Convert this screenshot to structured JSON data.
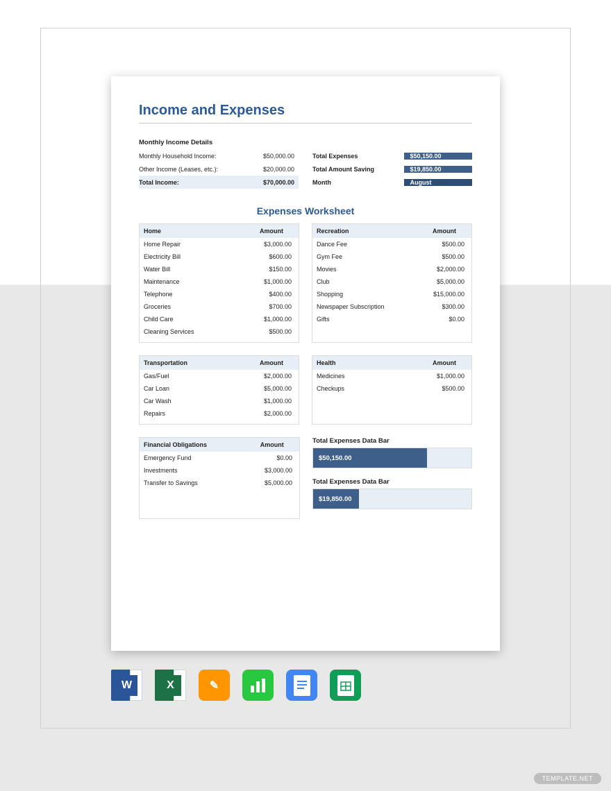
{
  "title": "Income and Expenses",
  "income": {
    "section_label": "Monthly Income Details",
    "rows": [
      {
        "label": "Monthly Household Income:",
        "value": "$50,000.00"
      },
      {
        "label": "Other Income (Leases, etc.):",
        "value": "$20,000.00"
      }
    ],
    "total_label": "Total Income:",
    "total_value": "$70,000.00"
  },
  "summary": {
    "rows": [
      {
        "label": "Total Expenses",
        "value": "$50,150.00",
        "style": "blue"
      },
      {
        "label": "Total Amount Saving",
        "value": "$19,850.00",
        "style": "blue"
      },
      {
        "label": "Month",
        "value": "August",
        "style": "dark"
      }
    ]
  },
  "worksheet_title": "Expenses Worksheet",
  "colors": {
    "accent": "#2a5a9a",
    "header_bg": "#e8eef5",
    "bar_fill": "#3d5f8a",
    "bar_dark": "#2e4d75",
    "border": "#dcdcdc"
  },
  "tables": {
    "row1": [
      {
        "name": "Home",
        "amount_label": "Amount",
        "rows": [
          {
            "label": "Home Repair",
            "value": "$3,000.00"
          },
          {
            "label": "Electricity Bill",
            "value": "$600.00"
          },
          {
            "label": "Water Bill",
            "value": "$150.00"
          },
          {
            "label": "Maintenance",
            "value": "$1,000.00"
          },
          {
            "label": "Telephone",
            "value": "$400.00"
          },
          {
            "label": "Groceries",
            "value": "$700.00"
          },
          {
            "label": "Child Care",
            "value": "$1,000.00"
          },
          {
            "label": "Cleaning Services",
            "value": "$500.00"
          }
        ]
      },
      {
        "name": "Recreation",
        "amount_label": "Amount",
        "rows": [
          {
            "label": "Dance Fee",
            "value": "$500.00"
          },
          {
            "label": "Gym Fee",
            "value": "$500.00"
          },
          {
            "label": "Movies",
            "value": "$2,000.00"
          },
          {
            "label": "Club",
            "value": "$5,000.00"
          },
          {
            "label": "Shopping",
            "value": "$15,000.00"
          },
          {
            "label": "Newspaper Subscription",
            "value": "$300.00"
          },
          {
            "label": "Gifts",
            "value": "$0.00"
          }
        ]
      }
    ],
    "row2": [
      {
        "name": "Transportation",
        "amount_label": "Amount",
        "rows": [
          {
            "label": "Gas/Fuel",
            "value": "$2,000.00"
          },
          {
            "label": "Car Loan",
            "value": "$5,000.00"
          },
          {
            "label": "Car Wash",
            "value": "$1,000.00"
          },
          {
            "label": "Repairs",
            "value": "$2,000.00"
          }
        ]
      },
      {
        "name": "Health",
        "amount_label": "Amount",
        "rows": [
          {
            "label": "Medicines",
            "value": "$1,000.00"
          },
          {
            "label": "Checkups",
            "value": "$500.00"
          }
        ]
      }
    ],
    "row3_left": {
      "name": "Financial Obligations",
      "amount_label": "Amount",
      "rows": [
        {
          "label": "Emergency Fund",
          "value": "$0.00"
        },
        {
          "label": "Investments",
          "value": "$3,000.00"
        },
        {
          "label": "Transfer to Savings",
          "value": "$5,000.00"
        }
      ]
    }
  },
  "bars": [
    {
      "title": "Total Expenses Data Bar",
      "value": "$50,150.00",
      "width_pct": 72
    },
    {
      "title": "Total Expenses Data Bar",
      "value": "$19,850.00",
      "width_pct": 29
    }
  ],
  "app_icons": [
    {
      "name": "word",
      "bg": "#2a5699",
      "glyph": "W"
    },
    {
      "name": "excel",
      "bg": "#1e7145",
      "glyph": "X"
    },
    {
      "name": "pages",
      "bg": "#ff9500",
      "glyph": "✎"
    },
    {
      "name": "numbers",
      "bg": "#28c940",
      "glyph": "▮"
    },
    {
      "name": "google-docs",
      "bg": "#4285f4",
      "glyph": "≡"
    },
    {
      "name": "google-sheets",
      "bg": "#0f9d58",
      "glyph": "▦"
    }
  ],
  "watermark": "TEMPLATE.NET"
}
